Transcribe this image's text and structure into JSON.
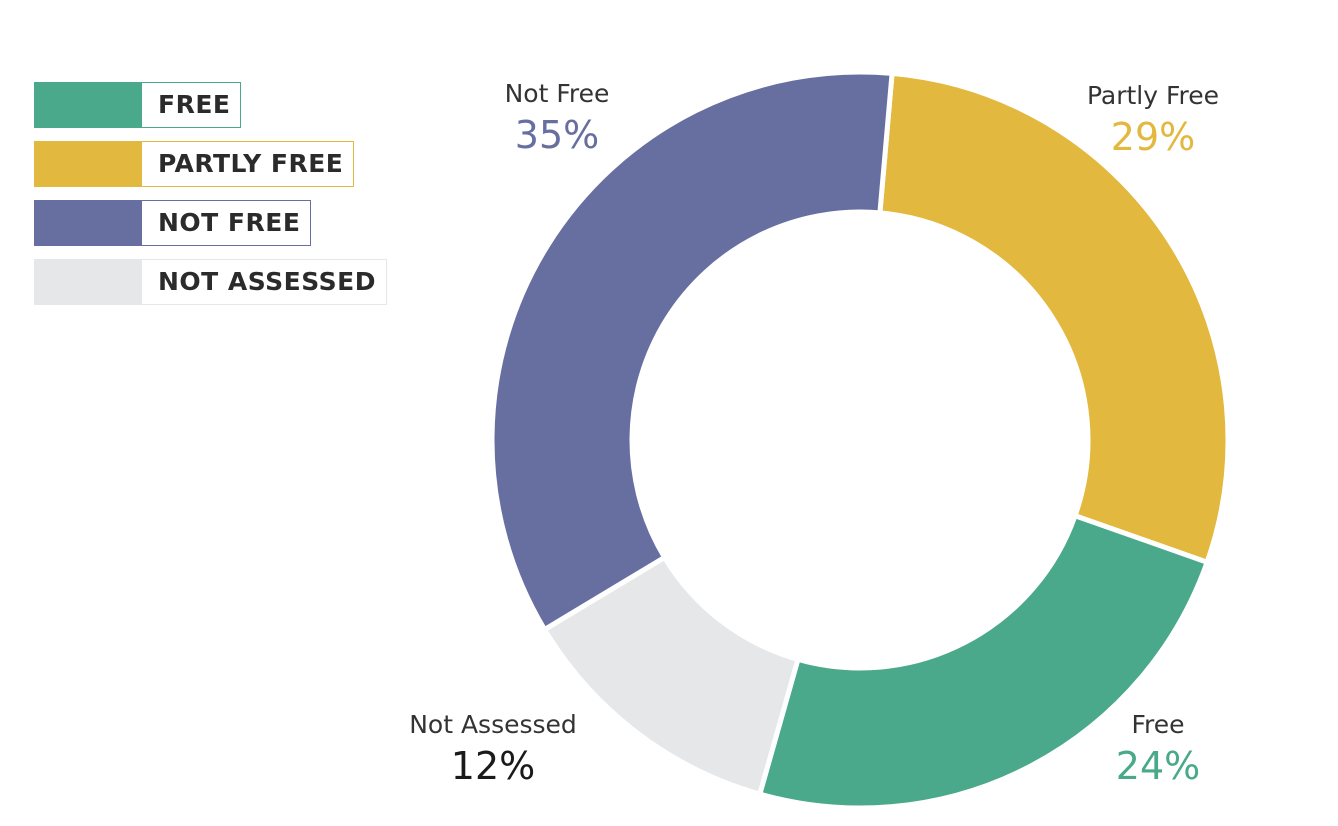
{
  "legend": {
    "items": [
      {
        "label": "FREE",
        "color": "#4aa98a"
      },
      {
        "label": "PARTLY FREE",
        "color": "#e3b83e"
      },
      {
        "label": "NOT FREE",
        "color": "#676fa1"
      },
      {
        "label": "NOT ASSESSED",
        "color": "#e6e7e9"
      }
    ]
  },
  "chart_data": {
    "type": "pie",
    "variant": "donut",
    "title": "",
    "slices": [
      {
        "name": "Partly Free",
        "value": 29,
        "value_label": "29%",
        "color": "#e3b83e",
        "label_color": "#e3b83e"
      },
      {
        "name": "Free",
        "value": 24,
        "value_label": "24%",
        "color": "#4aa98a",
        "label_color": "#4aa98a"
      },
      {
        "name": "Not Assessed",
        "value": 12,
        "value_label": "12%",
        "color": "#e6e7e9",
        "label_color": "#1a1a1a"
      },
      {
        "name": "Not Free",
        "value": 35,
        "value_label": "35%",
        "color": "#676fa1",
        "label_color": "#676fa1"
      }
    ],
    "start_angle_deg": 5,
    "direction": "clockwise",
    "legend_position": "top-left"
  }
}
